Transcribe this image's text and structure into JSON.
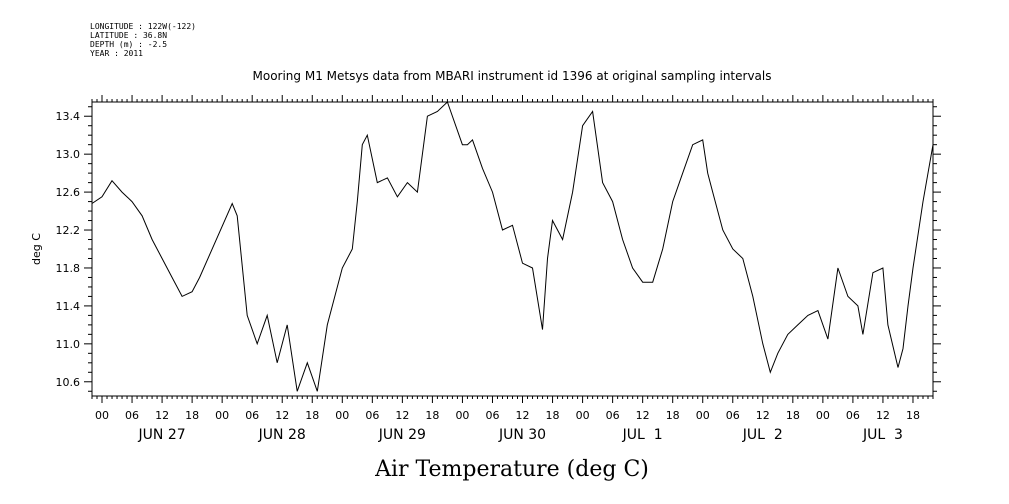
{
  "header": {
    "lines": [
      "LONGITUDE : 122W(-122)",
      "LATITUDE : 36.8N",
      "DEPTH (m) : -2.5",
      "YEAR : 2011"
    ]
  },
  "chart_data": {
    "type": "line",
    "title": "Mooring M1 Metsys data from MBARI instrument id 1396 at original sampling intervals",
    "xlabel": "Air Temperature (deg C)",
    "ylabel": "deg C",
    "ylim": [
      10.45,
      13.55
    ],
    "yticks": [
      10.6,
      11.0,
      11.4,
      11.8,
      12.2,
      12.6,
      13.0,
      13.4
    ],
    "ytick_labels": [
      "10.6",
      "11.0",
      "11.4",
      "11.8",
      "12.2",
      "12.6",
      "13.0",
      "13.4"
    ],
    "xlim": [
      "2011-06-26T22:00",
      "2011-07-03T22:00"
    ],
    "hour_tick_labels": [
      "00",
      "06",
      "12",
      "18",
      "00",
      "06",
      "12",
      "18",
      "00",
      "06",
      "12",
      "18",
      "00",
      "06",
      "12",
      "18",
      "00",
      "06",
      "12",
      "18",
      "00",
      "06",
      "12",
      "18",
      "00",
      "06",
      "12",
      "18"
    ],
    "day_labels": [
      "JUN 27",
      "JUN 28",
      "JUN 29",
      "JUN 30",
      "JUL  1",
      "JUL  2",
      "JUL  3"
    ],
    "grid": false,
    "series": [
      {
        "x": [
          "2011-06-26T22:00",
          "2011-06-27T00:00",
          "2011-06-27T02:00",
          "2011-06-27T04:00",
          "2011-06-27T06:00",
          "2011-06-27T08:00",
          "2011-06-27T10:00",
          "2011-06-27T12:00",
          "2011-06-27T14:00",
          "2011-06-27T16:00",
          "2011-06-27T18:00",
          "2011-06-27T19:30",
          "2011-06-28T02:00",
          "2011-06-28T03:00",
          "2011-06-28T05:00",
          "2011-06-28T07:00",
          "2011-06-28T09:00",
          "2011-06-28T11:00",
          "2011-06-28T13:00",
          "2011-06-28T15:00",
          "2011-06-28T17:00",
          "2011-06-28T19:00",
          "2011-06-28T21:00",
          "2011-06-29T00:00",
          "2011-06-29T02:00",
          "2011-06-29T03:00",
          "2011-06-29T04:00",
          "2011-06-29T05:00",
          "2011-06-29T07:00",
          "2011-06-29T09:00",
          "2011-06-29T11:00",
          "2011-06-29T13:00",
          "2011-06-29T15:00",
          "2011-06-29T17:00",
          "2011-06-29T19:00",
          "2011-06-29T21:00",
          "2011-06-30T00:00",
          "2011-06-30T01:00",
          "2011-06-30T02:00",
          "2011-06-30T04:00",
          "2011-06-30T06:00",
          "2011-06-30T08:00",
          "2011-06-30T10:00",
          "2011-06-30T12:00",
          "2011-06-30T14:00",
          "2011-06-30T16:00",
          "2011-06-30T17:00",
          "2011-06-30T18:00",
          "2011-06-30T20:00",
          "2011-06-30T22:00",
          "2011-07-01T00:00",
          "2011-07-01T02:00",
          "2011-07-01T04:00",
          "2011-07-01T06:00",
          "2011-07-01T08:00",
          "2011-07-01T10:00",
          "2011-07-01T12:00",
          "2011-07-01T14:00",
          "2011-07-01T16:00",
          "2011-07-01T18:00",
          "2011-07-01T20:00",
          "2011-07-01T22:00",
          "2011-07-02T00:00",
          "2011-07-02T01:00",
          "2011-07-02T02:00",
          "2011-07-02T04:00",
          "2011-07-02T06:00",
          "2011-07-02T08:00",
          "2011-07-02T10:00",
          "2011-07-02T12:00",
          "2011-07-02T13:30",
          "2011-07-02T15:00",
          "2011-07-02T17:00",
          "2011-07-02T19:00",
          "2011-07-02T21:00",
          "2011-07-02T23:00",
          "2011-07-03T01:00",
          "2011-07-03T03:00",
          "2011-07-03T05:00",
          "2011-07-03T07:00",
          "2011-07-03T08:00",
          "2011-07-03T10:00",
          "2011-07-03T12:00",
          "2011-07-03T13:00",
          "2011-07-03T15:00",
          "2011-07-03T16:00",
          "2011-07-03T17:00",
          "2011-07-03T18:00",
          "2011-07-03T20:00",
          "2011-07-03T21:00",
          "2011-07-03T22:00"
        ],
        "y": [
          12.48,
          12.55,
          12.72,
          12.6,
          12.5,
          12.35,
          12.1,
          11.9,
          11.7,
          11.5,
          11.55,
          11.7,
          12.48,
          12.35,
          11.3,
          11.0,
          11.3,
          10.8,
          11.2,
          10.5,
          10.8,
          10.5,
          11.2,
          11.8,
          12.0,
          12.5,
          13.1,
          13.2,
          12.7,
          12.75,
          12.55,
          12.7,
          12.6,
          13.4,
          13.45,
          13.55,
          13.1,
          13.1,
          13.15,
          12.85,
          12.6,
          12.2,
          12.25,
          11.85,
          11.8,
          11.15,
          11.9,
          12.3,
          12.1,
          12.6,
          13.3,
          13.45,
          12.7,
          12.5,
          12.1,
          11.8,
          11.65,
          11.65,
          12.0,
          12.5,
          12.8,
          13.1,
          13.15,
          12.8,
          12.6,
          12.2,
          12.0,
          11.9,
          11.5,
          11.0,
          10.7,
          10.9,
          11.1,
          11.2,
          11.3,
          11.35,
          11.05,
          11.8,
          11.5,
          11.4,
          11.1,
          11.75,
          11.8,
          11.2,
          10.75,
          10.95,
          11.4,
          11.8,
          12.5,
          12.8,
          13.1
        ]
      }
    ]
  }
}
